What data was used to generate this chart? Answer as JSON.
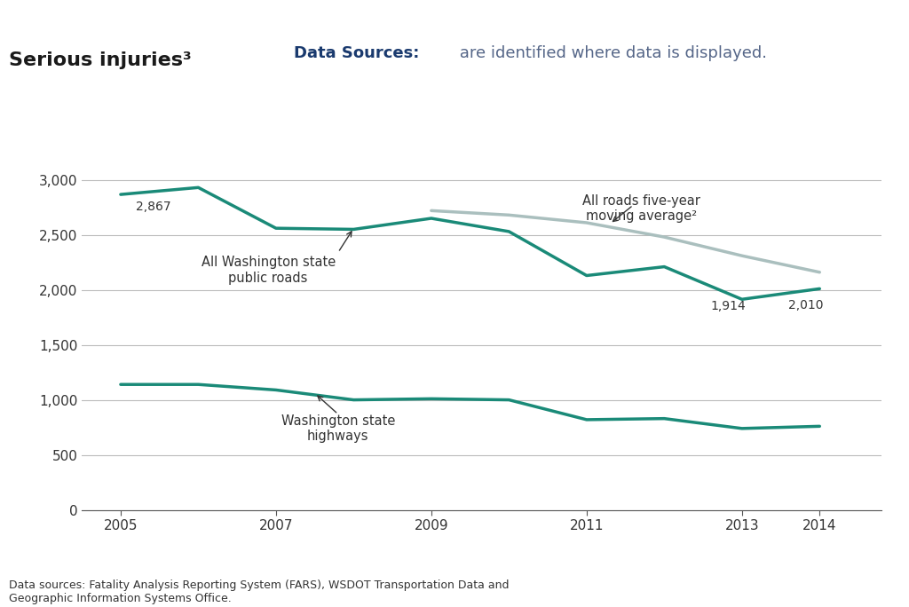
{
  "years": [
    2005,
    2006,
    2007,
    2008,
    2009,
    2010,
    2011,
    2012,
    2013,
    2014
  ],
  "all_roads": [
    2867,
    2930,
    2560,
    2550,
    2650,
    2530,
    2130,
    2210,
    1914,
    2010
  ],
  "highways": [
    1140,
    1140,
    1090,
    1000,
    1010,
    1000,
    820,
    830,
    740,
    760
  ],
  "moving_avg": [
    null,
    null,
    null,
    null,
    2720,
    2680,
    2610,
    2480,
    2310,
    2160
  ],
  "all_roads_color": "#1a8a78",
  "highways_color": "#1a8a78",
  "moving_avg_color": "#aabfbe",
  "background_color": "#ffffff",
  "banner_color": "#ccd9e8",
  "title": "Serious injuries³",
  "banner_bold": "Data Sources:",
  "banner_text": " are identified where data is displayed.",
  "ylabel_ticks": [
    0,
    500,
    1000,
    1500,
    2000,
    2500,
    3000
  ],
  "ylim": [
    0,
    3200
  ],
  "xlim": [
    2004.5,
    2014.8
  ],
  "footnote": "Data sources: Fatality Analysis Reporting System (FARS), WSDOT Transportation Data and\nGeographic Information Systems Office.",
  "label_all_roads": "All Washington state\npublic roads",
  "label_highways": "Washington state\nhighways",
  "label_moving_avg": "All roads five-year\nmoving average²",
  "line_width": 2.5,
  "moving_avg_lw": 2.5
}
